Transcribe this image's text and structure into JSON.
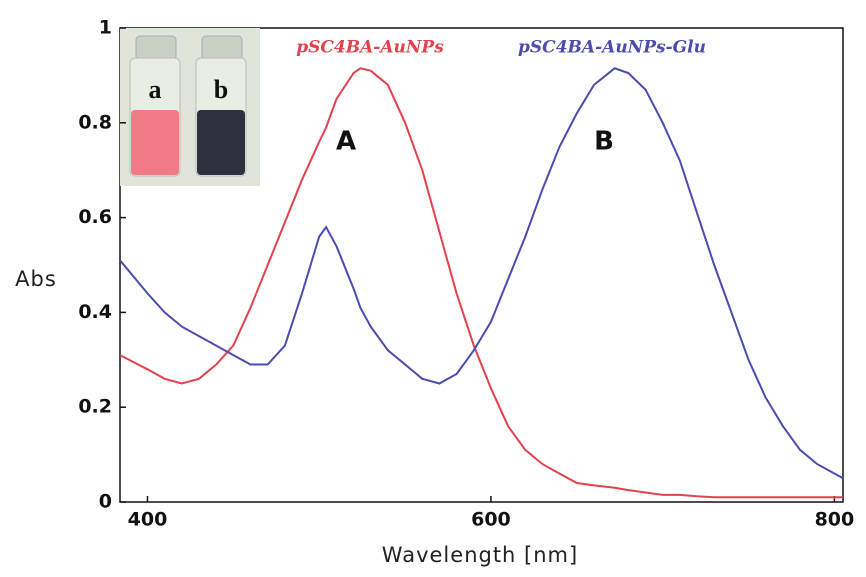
{
  "chart_data": {
    "type": "line",
    "xlabel": "Wavelength [nm]",
    "ylabel": "Abs",
    "x": [
      384,
      400,
      410,
      420,
      430,
      440,
      450,
      460,
      470,
      480,
      490,
      500,
      504,
      510,
      520,
      524,
      530,
      540,
      550,
      560,
      570,
      580,
      590,
      600,
      610,
      620,
      630,
      640,
      650,
      660,
      672,
      680,
      690,
      700,
      710,
      720,
      730,
      740,
      750,
      760,
      770,
      780,
      790,
      805
    ],
    "series": [
      {
        "name": "pSC4BA-AuNPs",
        "color": "#e0434e",
        "values": [
          0.31,
          0.28,
          0.26,
          0.25,
          0.26,
          0.29,
          0.33,
          0.41,
          0.5,
          0.59,
          0.68,
          0.76,
          0.79,
          0.85,
          0.905,
          0.915,
          0.91,
          0.88,
          0.8,
          0.7,
          0.57,
          0.44,
          0.33,
          0.24,
          0.16,
          0.11,
          0.08,
          0.06,
          0.04,
          0.035,
          0.03,
          0.025,
          0.02,
          0.015,
          0.015,
          0.012,
          0.01,
          0.01,
          0.01,
          0.01,
          0.01,
          0.01,
          0.01,
          0.01
        ]
      },
      {
        "name": "pSC4BA-AuNPs-Glu",
        "color": "#4c4cae",
        "values": [
          0.51,
          0.44,
          0.4,
          0.37,
          0.35,
          0.33,
          0.31,
          0.29,
          0.29,
          0.33,
          0.44,
          0.56,
          0.58,
          0.54,
          0.45,
          0.41,
          0.37,
          0.32,
          0.29,
          0.26,
          0.25,
          0.27,
          0.32,
          0.38,
          0.47,
          0.56,
          0.66,
          0.75,
          0.82,
          0.88,
          0.915,
          0.905,
          0.87,
          0.8,
          0.72,
          0.61,
          0.5,
          0.4,
          0.3,
          0.22,
          0.16,
          0.11,
          0.08,
          0.05
        ]
      }
    ],
    "xlim": [
      384,
      805
    ],
    "xticks": [
      400,
      600,
      800
    ],
    "ylim": [
      0,
      1
    ],
    "yticks": [
      0,
      0.2,
      0.4,
      0.6,
      0.8,
      1
    ],
    "annotations": [
      "A",
      "B"
    ],
    "inset_labels": [
      "a",
      "b"
    ]
  }
}
